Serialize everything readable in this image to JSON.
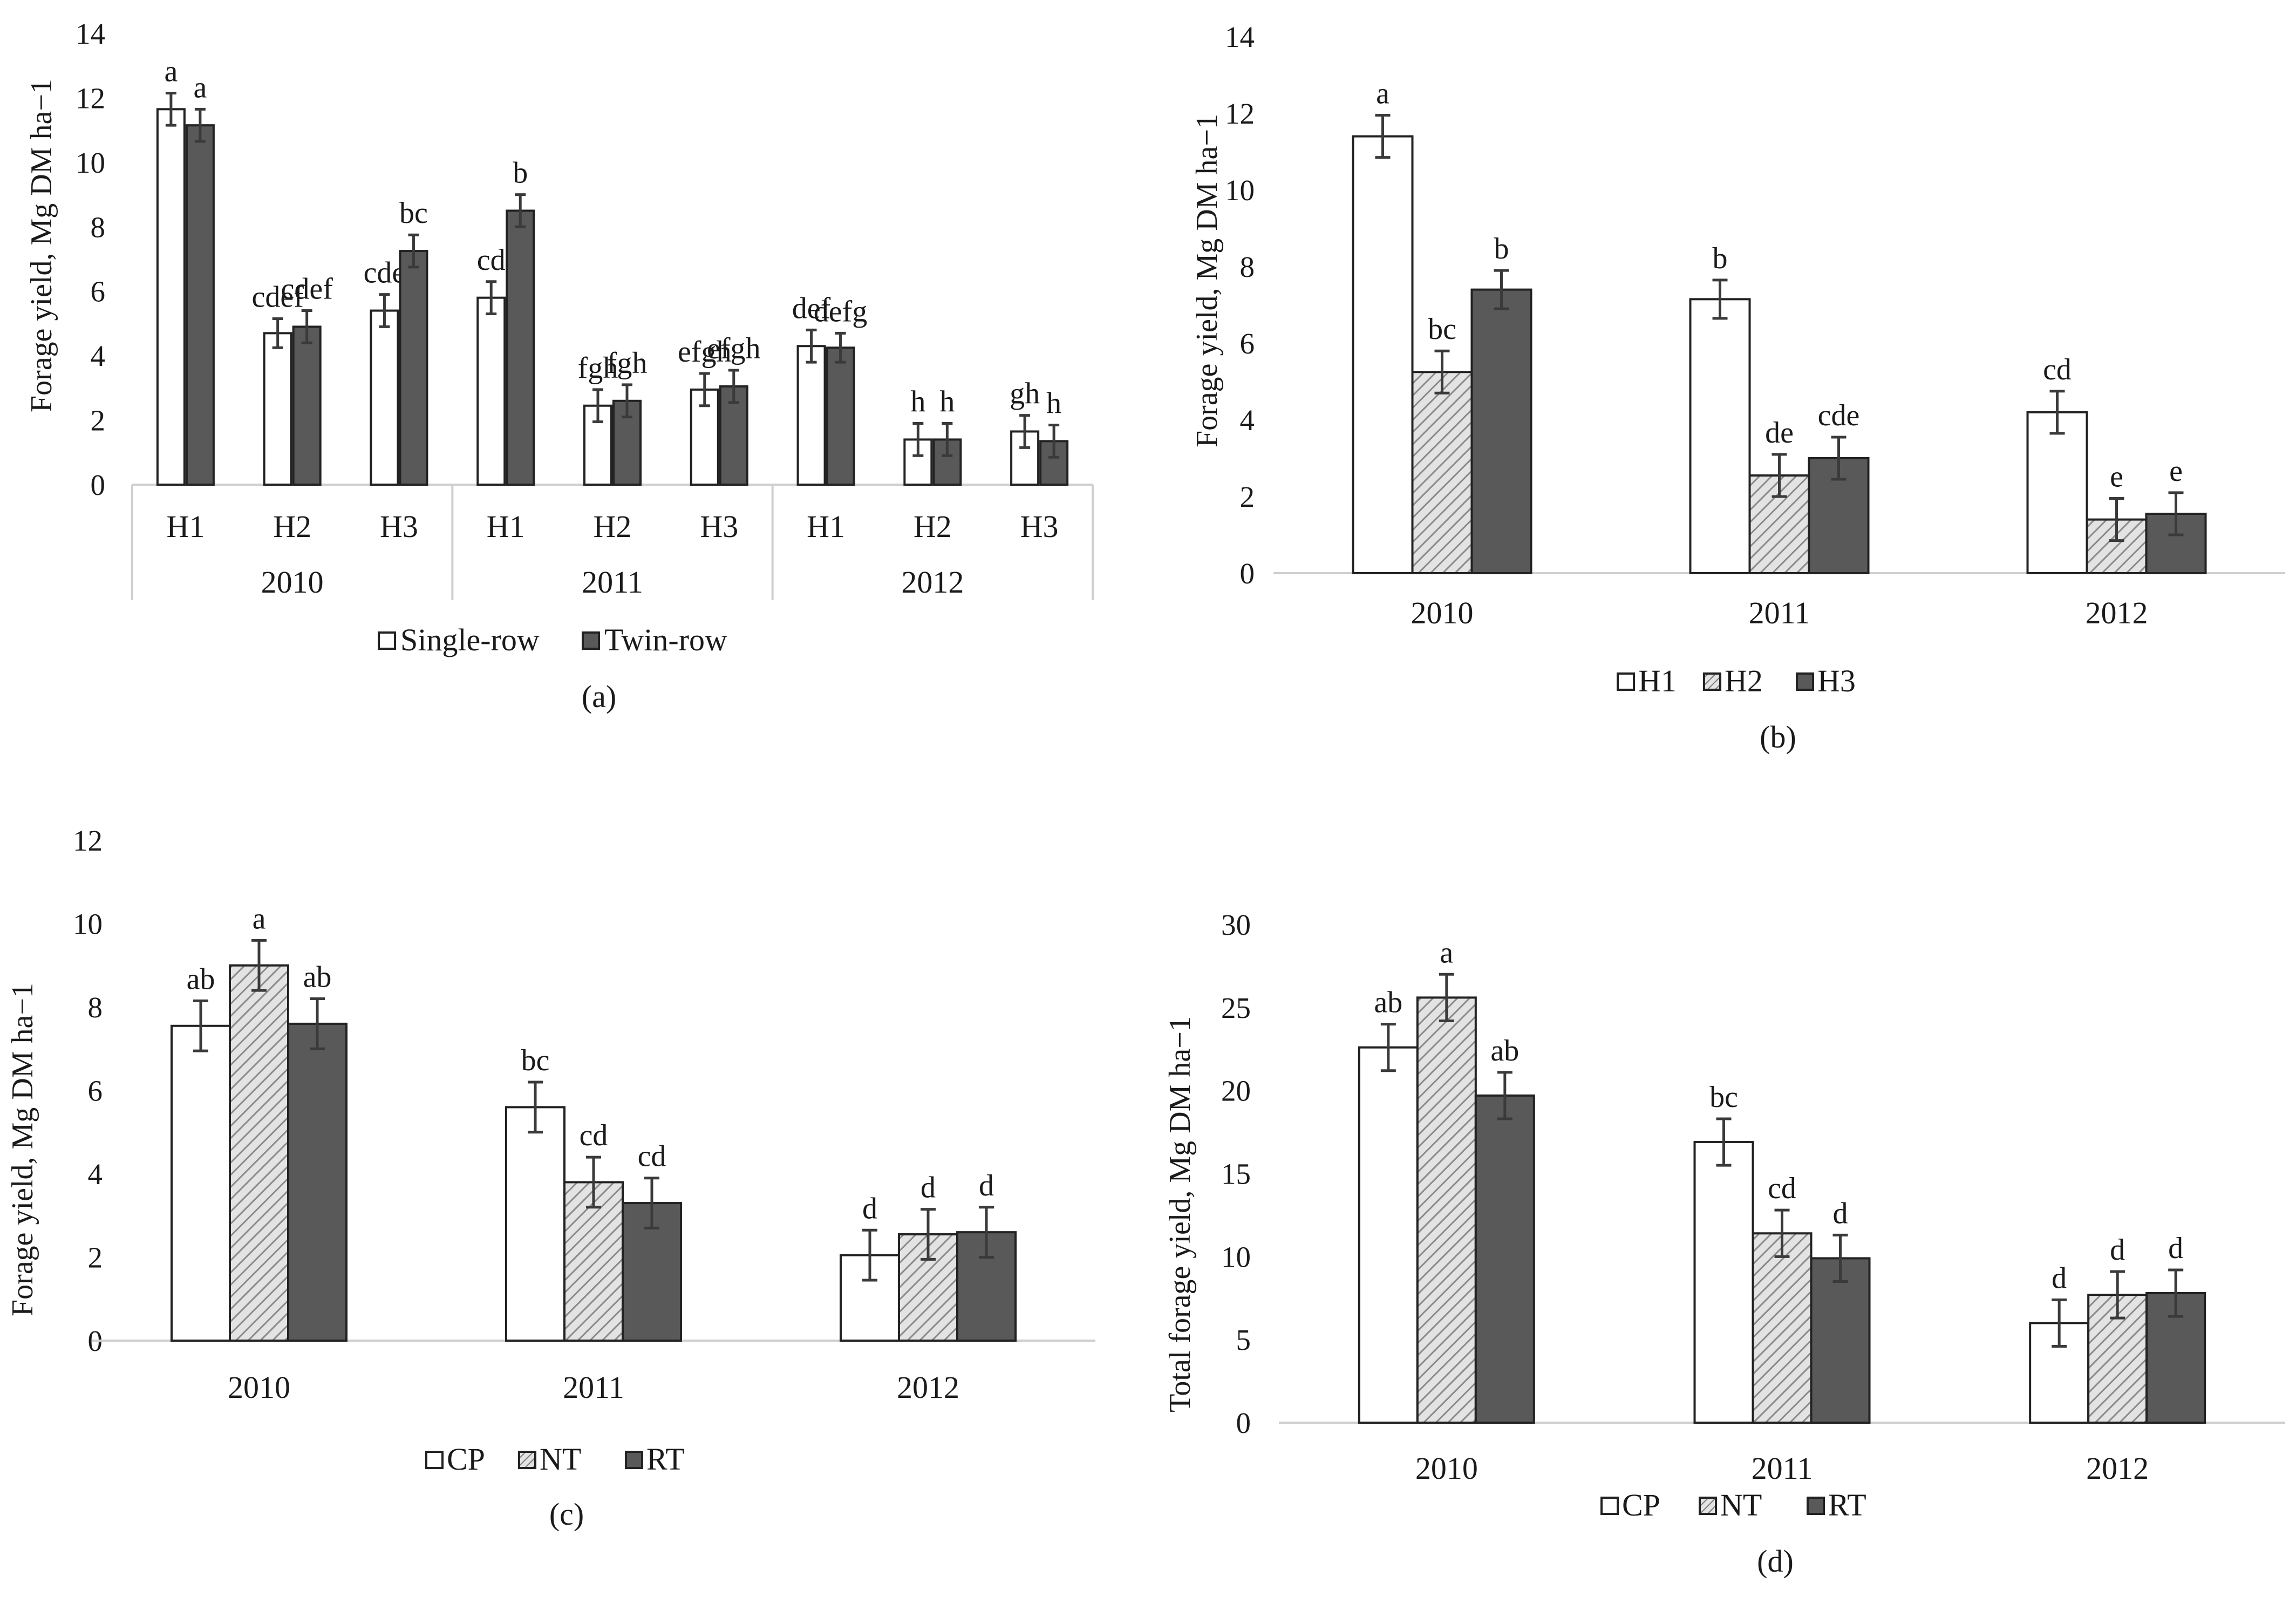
{
  "colors": {
    "white_fill": "#ffffff",
    "dark_fill": "#595959",
    "hatch_bg": "#e3e3e3",
    "hatch_line": "#8a8a8a",
    "outline": "#222222",
    "axis": "#cfcfcf"
  },
  "chart_data": [
    {
      "id": "a",
      "type": "bar",
      "caption": "(a)",
      "ylabel": "Forage yield, Mg DM ha−1",
      "ylim": [
        0,
        14
      ],
      "yticks": [
        "0",
        "2",
        "4",
        "6",
        "8",
        "10",
        "12",
        "14"
      ],
      "groups": [
        "2010",
        "2011",
        "2012"
      ],
      "categories": [
        "H1",
        "H2",
        "H3",
        "H1",
        "H2",
        "H3",
        "H1",
        "H2",
        "H3"
      ],
      "series": [
        {
          "name": "Single-row",
          "style": "white",
          "values": [
            11.65,
            4.7,
            5.4,
            5.8,
            2.45,
            2.95,
            4.3,
            1.4,
            1.65
          ],
          "errors": [
            0.5,
            0.45,
            0.5,
            0.5,
            0.5,
            0.5,
            0.5,
            0.5,
            0.5
          ],
          "labels": [
            "a",
            "cdef",
            "cde",
            "cd",
            "fgh",
            "efgh",
            "def",
            "h",
            "gh"
          ]
        },
        {
          "name": "Twin-row",
          "style": "dark",
          "values": [
            11.15,
            4.9,
            7.25,
            8.5,
            2.6,
            3.05,
            4.25,
            1.4,
            1.35
          ],
          "errors": [
            0.5,
            0.5,
            0.5,
            0.5,
            0.5,
            0.5,
            0.45,
            0.5,
            0.5
          ],
          "labels": [
            "a",
            "cdef",
            "bc",
            "b",
            "fgh",
            "efgh",
            "defg",
            "h",
            "h"
          ]
        }
      ]
    },
    {
      "id": "b",
      "type": "bar",
      "caption": "(b)",
      "ylabel": "Forage yield, Mg DM ha−1",
      "ylim": [
        0,
        14
      ],
      "yticks": [
        "0",
        "2",
        "4",
        "6",
        "8",
        "10",
        "12",
        "14"
      ],
      "categories": [
        "2010",
        "2011",
        "2012"
      ],
      "series": [
        {
          "name": "H1",
          "style": "white",
          "values": [
            11.4,
            7.15,
            4.2
          ],
          "errors": [
            0.55,
            0.5,
            0.55
          ],
          "labels": [
            "a",
            "b",
            "cd"
          ]
        },
        {
          "name": "H2",
          "style": "hatch",
          "values": [
            5.25,
            2.55,
            1.4
          ],
          "errors": [
            0.55,
            0.55,
            0.55
          ],
          "labels": [
            "bc",
            "de",
            "e"
          ]
        },
        {
          "name": "H3",
          "style": "dark",
          "values": [
            7.4,
            3.0,
            1.55
          ],
          "errors": [
            0.5,
            0.55,
            0.55
          ],
          "labels": [
            "b",
            "cde",
            "e"
          ]
        }
      ]
    },
    {
      "id": "c",
      "type": "bar",
      "caption": "(c)",
      "ylabel": "Forage yield, Mg DM  ha−1",
      "ylim": [
        0,
        12
      ],
      "yticks": [
        "0",
        "2",
        "4",
        "6",
        "8",
        "10",
        "12"
      ],
      "categories": [
        "2010",
        "2011",
        "2012"
      ],
      "series": [
        {
          "name": "CP",
          "style": "white",
          "values": [
            7.55,
            5.6,
            2.05
          ],
          "errors": [
            0.6,
            0.6,
            0.6
          ],
          "labels": [
            "ab",
            "bc",
            "d"
          ]
        },
        {
          "name": "NT",
          "style": "hatch",
          "values": [
            9.0,
            3.8,
            2.55
          ],
          "errors": [
            0.6,
            0.6,
            0.6
          ],
          "labels": [
            "a",
            "cd",
            "d"
          ]
        },
        {
          "name": "RT",
          "style": "dark",
          "values": [
            7.6,
            3.3,
            2.6
          ],
          "errors": [
            0.6,
            0.6,
            0.6
          ],
          "labels": [
            "ab",
            "cd",
            "d"
          ]
        }
      ]
    },
    {
      "id": "d",
      "type": "bar",
      "caption": "(d)",
      "ylabel": "Total forage yield, Mg DM ha−1",
      "ylim": [
        0,
        30
      ],
      "yticks": [
        "0",
        "5",
        "10",
        "15",
        "20",
        "25",
        "30"
      ],
      "categories": [
        "2010",
        "2011",
        "2012"
      ],
      "series": [
        {
          "name": "CP",
          "style": "white",
          "values": [
            22.6,
            16.9,
            6.0
          ],
          "errors": [
            1.4,
            1.4,
            1.4
          ],
          "labels": [
            "ab",
            "bc",
            "d"
          ]
        },
        {
          "name": "NT",
          "style": "hatch",
          "values": [
            25.6,
            11.4,
            7.7
          ],
          "errors": [
            1.4,
            1.4,
            1.4
          ],
          "labels": [
            "a",
            "cd",
            "d"
          ]
        },
        {
          "name": "RT",
          "style": "dark",
          "values": [
            19.7,
            9.9,
            7.8
          ],
          "errors": [
            1.4,
            1.4,
            1.4
          ],
          "labels": [
            "ab",
            "d",
            "d"
          ]
        }
      ]
    }
  ]
}
